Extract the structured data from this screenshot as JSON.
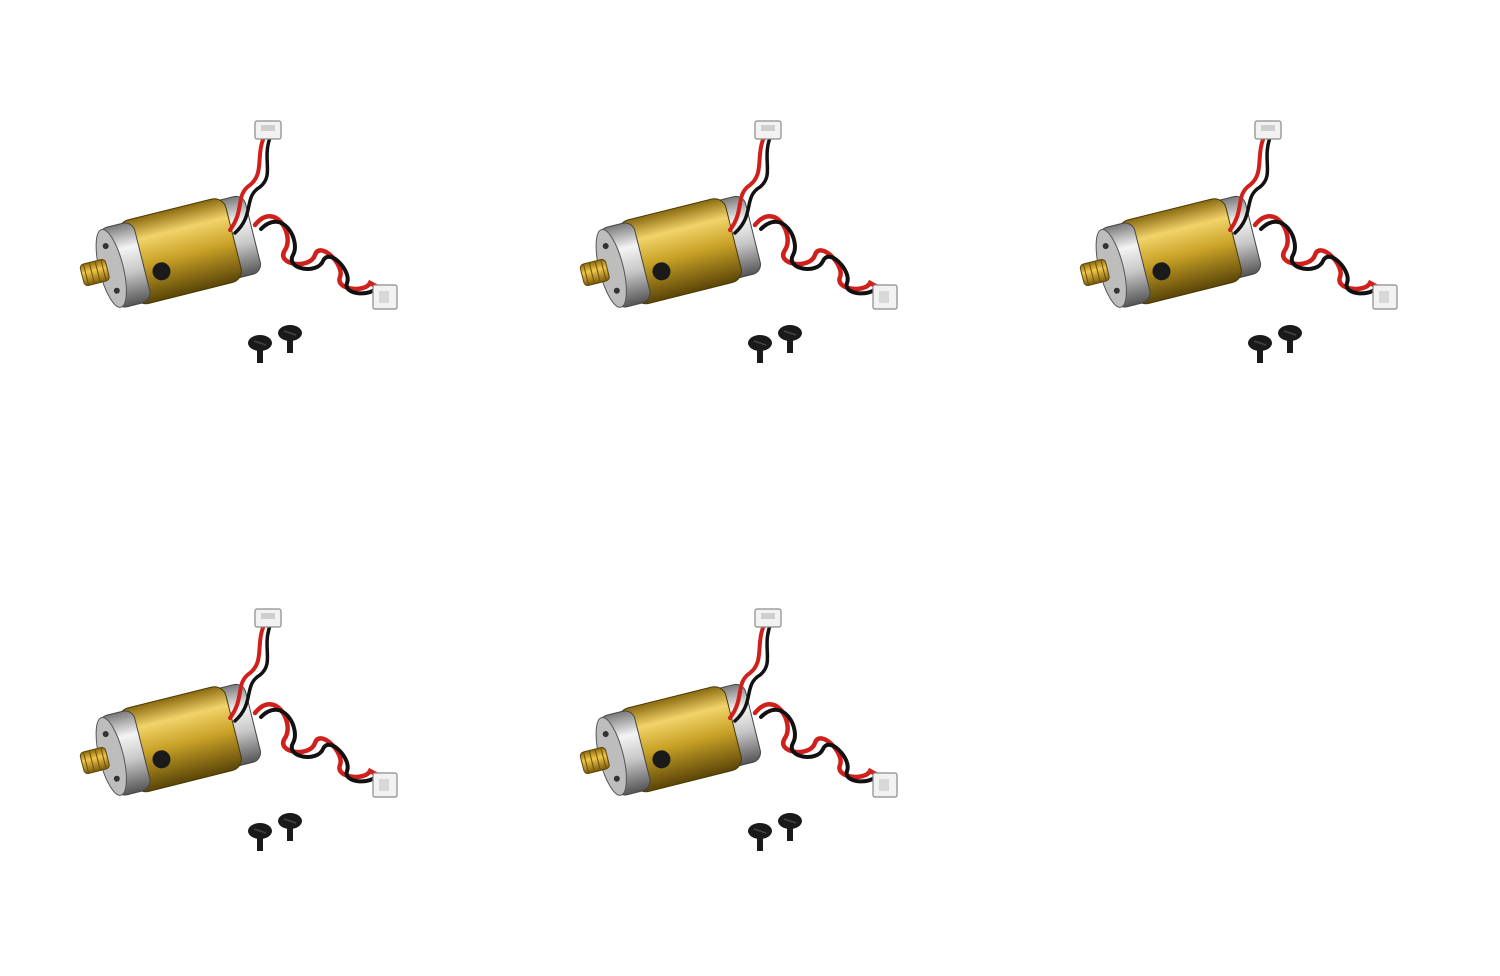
{
  "image": {
    "subject": "motor-set",
    "colors": {
      "background": "#ffffff",
      "can_gold": "#c9a227",
      "can_silver": "#c8c8c8",
      "wire_red": "#d0201c",
      "wire_black": "#111111",
      "connector": "#f2f2f2",
      "screw": "#1a1a1a",
      "pinion_brass": "#d4a020"
    },
    "items": [
      {
        "id": "set-1"
      },
      {
        "id": "set-2"
      },
      {
        "id": "set-3"
      },
      {
        "id": "set-4"
      },
      {
        "id": "set-5"
      }
    ]
  }
}
